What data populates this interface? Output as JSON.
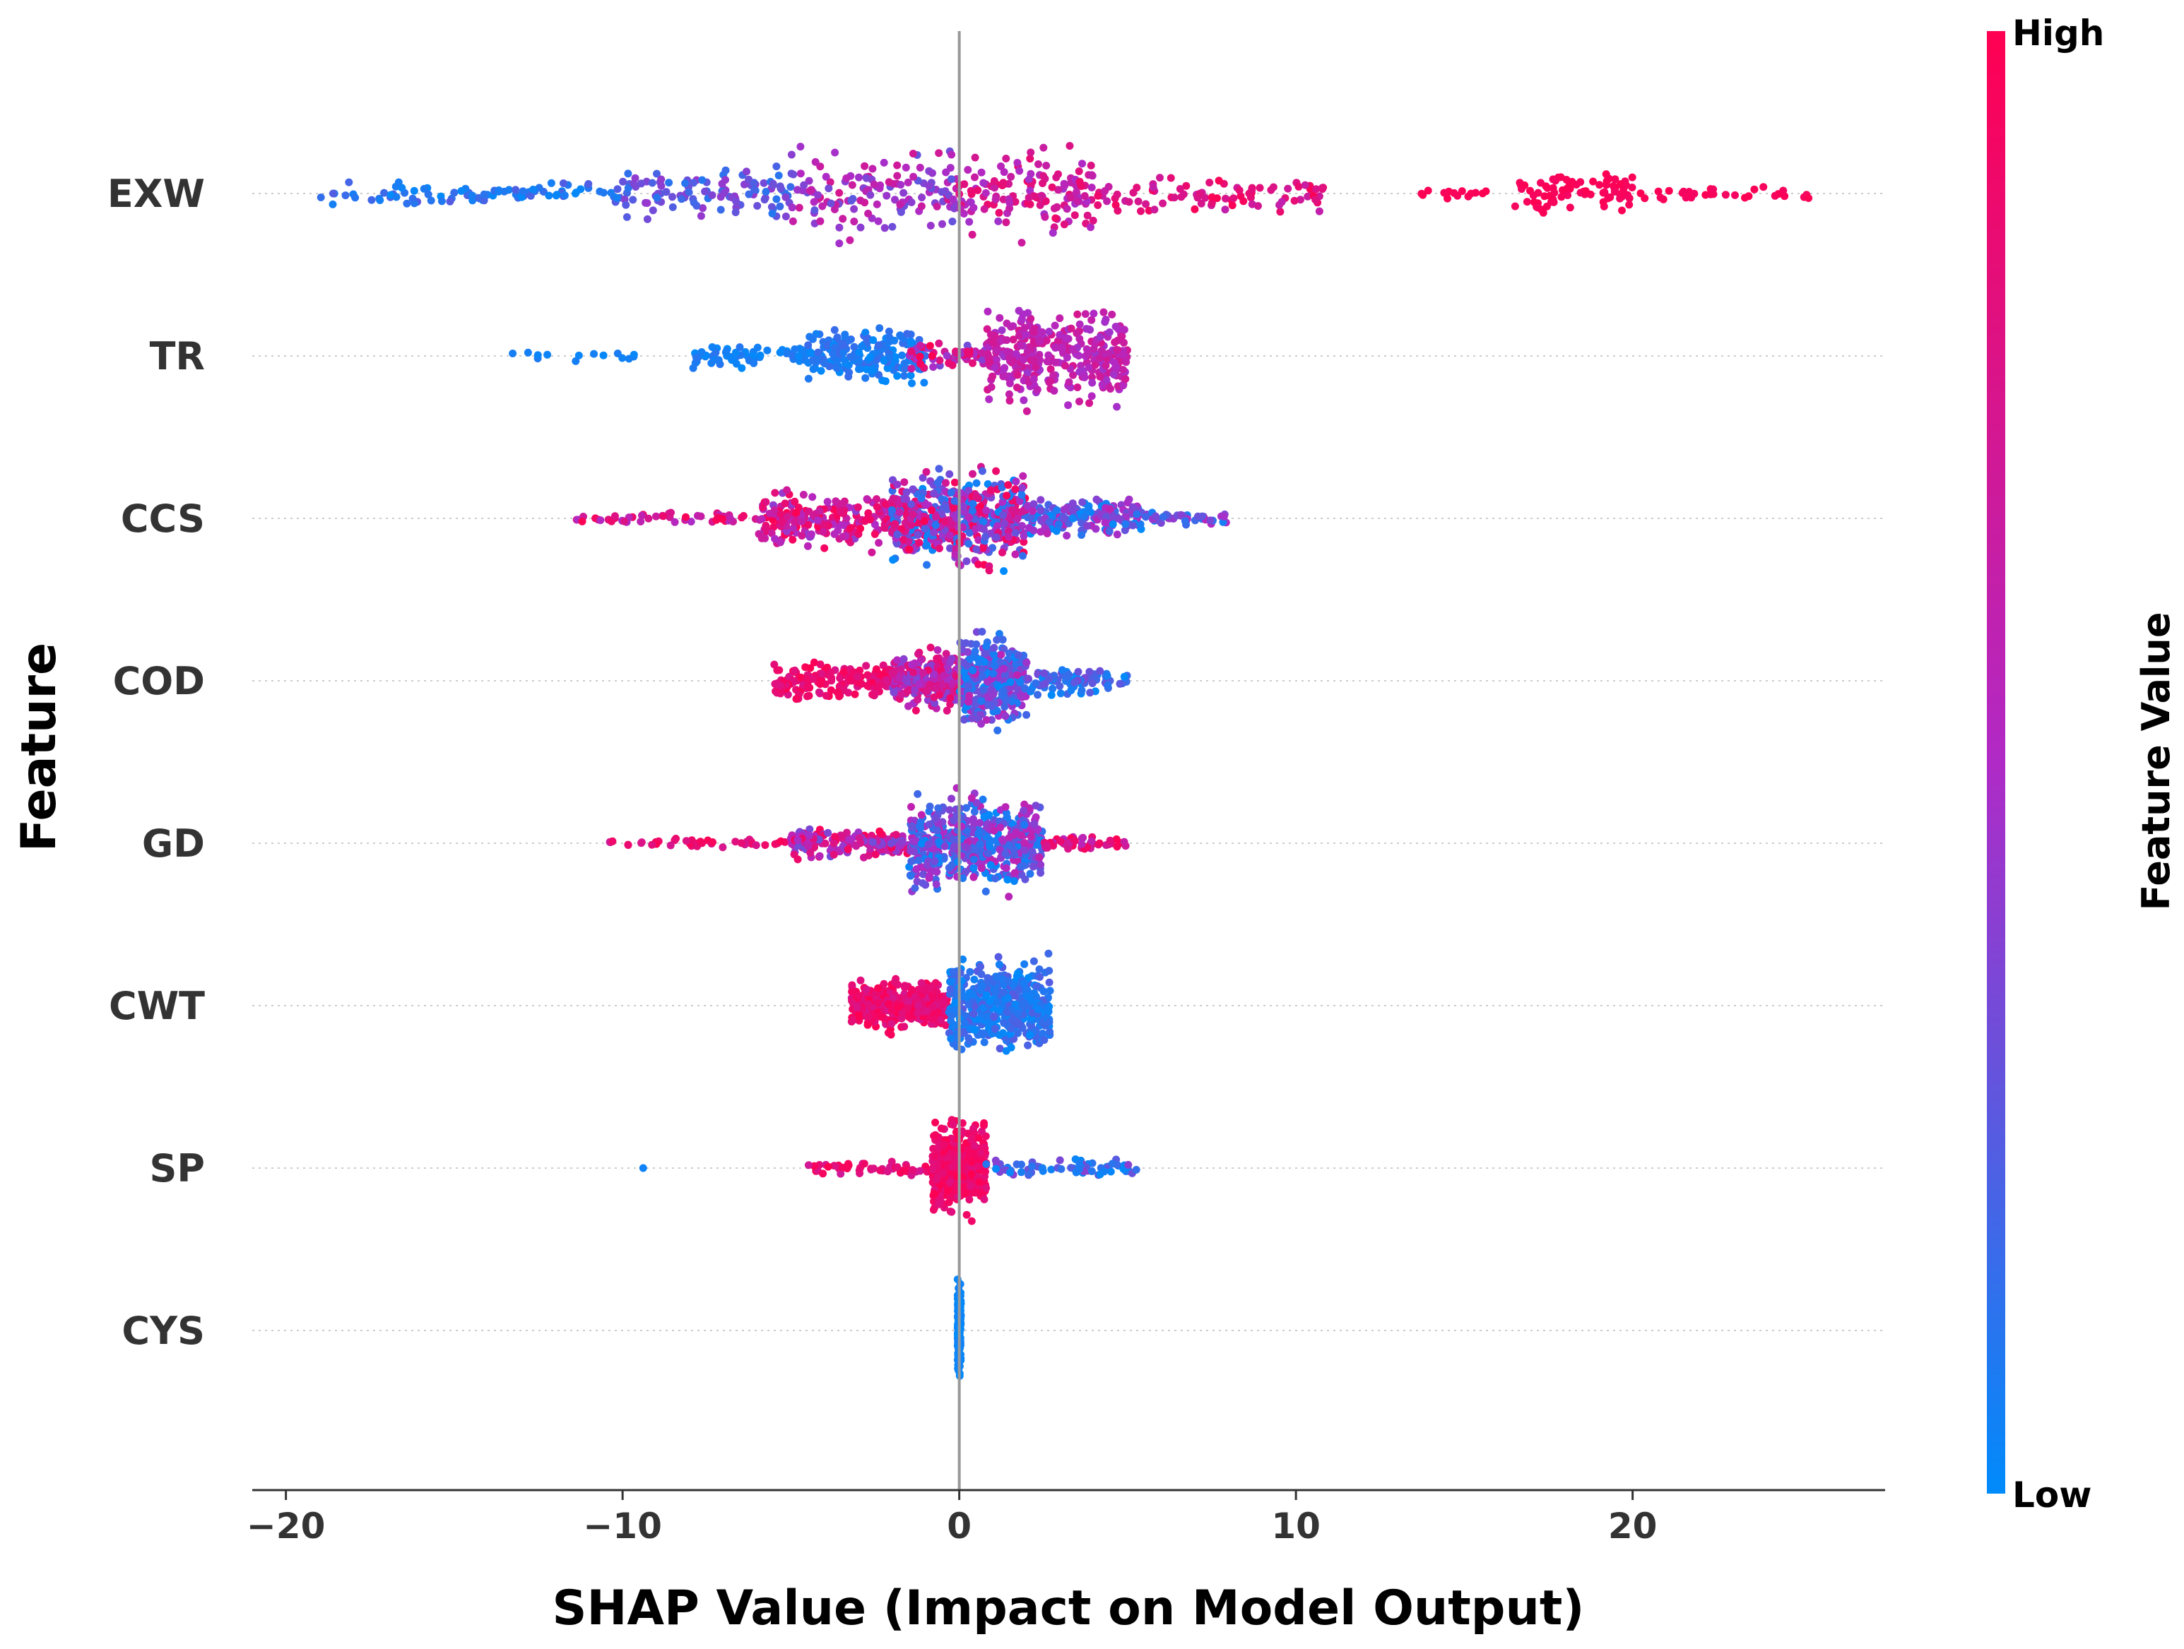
{
  "chart_data": {
    "type": "scatter",
    "subtype": "shap-beeswarm",
    "xlabel": "SHAP Value (Impact on Model Output)",
    "ylabel": "Feature",
    "xlim": [
      -21,
      27.5
    ],
    "xticks": [
      -20,
      -10,
      0,
      10,
      20
    ],
    "xtick_labels": [
      "−20",
      "−10",
      "0",
      "10",
      "20"
    ],
    "grid": false,
    "colorbar": {
      "title": "Feature Value",
      "high_label": "High",
      "low_label": "Low",
      "low_color": "#008bfb",
      "mid_color": "#b02ac6",
      "high_color": "#ff0052"
    },
    "features": [
      {
        "name": "EXW",
        "min": -19,
        "max": 25.3,
        "clusters": [
          {
            "range": [
              -19,
              -10
            ],
            "n": 90,
            "spread": 0.25,
            "color": [
              0.0,
              0.25
            ]
          },
          {
            "range": [
              -10,
              -5
            ],
            "n": 110,
            "spread": 0.6,
            "color": [
              0.1,
              0.45
            ]
          },
          {
            "range": [
              -5,
              0
            ],
            "n": 140,
            "spread": 0.95,
            "color": [
              0.25,
              0.75
            ]
          },
          {
            "range": [
              0,
              4
            ],
            "n": 140,
            "spread": 0.95,
            "color": [
              0.45,
              0.9
            ]
          },
          {
            "range": [
              4,
              11
            ],
            "n": 90,
            "spread": 0.4,
            "color": [
              0.6,
              0.98
            ]
          },
          {
            "range": [
              13.5,
              16
            ],
            "n": 14,
            "spread": 0.12,
            "color": [
              0.95,
              1.0
            ]
          },
          {
            "range": [
              16.5,
              20
            ],
            "n": 80,
            "spread": 0.45,
            "color": [
              0.93,
              1.0
            ]
          },
          {
            "range": [
              20,
              25.3
            ],
            "n": 30,
            "spread": 0.15,
            "color": [
              0.93,
              1.0
            ]
          }
        ]
      },
      {
        "name": "TR",
        "min": -13.5,
        "max": 5,
        "clusters": [
          {
            "range": [
              -13.5,
              -9.5
            ],
            "n": 14,
            "spread": 0.1,
            "color": [
              0.0,
              0.1
            ]
          },
          {
            "range": [
              -8,
              -4.5
            ],
            "n": 60,
            "spread": 0.25,
            "color": [
              0.0,
              0.12
            ]
          },
          {
            "range": [
              -4.5,
              -1
            ],
            "n": 200,
            "spread": 0.55,
            "color": [
              0.0,
              0.18
            ]
          },
          {
            "range": [
              -1.5,
              0.8
            ],
            "n": 60,
            "spread": 0.35,
            "color": [
              0.3,
              1.0
            ]
          },
          {
            "range": [
              0.8,
              5
            ],
            "n": 340,
            "spread": 1.0,
            "color": [
              0.45,
              0.75
            ]
          }
        ]
      },
      {
        "name": "CCS",
        "min": -11.5,
        "max": 8,
        "clusters": [
          {
            "range": [
              -11.5,
              -6
            ],
            "n": 50,
            "spread": 0.12,
            "color": [
              0.45,
              1.0
            ]
          },
          {
            "range": [
              -6,
              -2
            ],
            "n": 220,
            "spread": 0.6,
            "color": [
              0.4,
              1.0
            ]
          },
          {
            "range": [
              -2,
              2
            ],
            "n": 520,
            "spread": 1.0,
            "color": [
              0.0,
              1.0
            ]
          },
          {
            "range": [
              2,
              5.5
            ],
            "n": 180,
            "spread": 0.45,
            "color": [
              0.0,
              0.6
            ]
          },
          {
            "range": [
              5.5,
              8
            ],
            "n": 40,
            "spread": 0.15,
            "color": [
              0.0,
              0.55
            ]
          }
        ]
      },
      {
        "name": "COD",
        "min": -5.5,
        "max": 5,
        "clusters": [
          {
            "range": [
              -5.5,
              -2
            ],
            "n": 180,
            "spread": 0.4,
            "color": [
              0.75,
              1.0
            ]
          },
          {
            "range": [
              -2,
              0
            ],
            "n": 240,
            "spread": 0.6,
            "color": [
              0.35,
              0.9
            ]
          },
          {
            "range": [
              0,
              2
            ],
            "n": 340,
            "spread": 1.0,
            "color": [
              0.0,
              0.6
            ]
          },
          {
            "range": [
              2,
              5
            ],
            "n": 90,
            "spread": 0.3,
            "color": [
              0.0,
              0.35
            ]
          }
        ]
      },
      {
        "name": "GD",
        "min": -10.5,
        "max": 5,
        "clusters": [
          {
            "range": [
              -10.5,
              -5
            ],
            "n": 40,
            "spread": 0.1,
            "color": [
              0.7,
              1.0
            ]
          },
          {
            "range": [
              -5,
              -1.5
            ],
            "n": 180,
            "spread": 0.3,
            "color": [
              0.3,
              1.0
            ]
          },
          {
            "range": [
              -1.5,
              2.5
            ],
            "n": 520,
            "spread": 1.0,
            "color": [
              0.0,
              0.6
            ]
          },
          {
            "range": [
              2.5,
              5
            ],
            "n": 50,
            "spread": 0.15,
            "color": [
              0.55,
              1.0
            ]
          }
        ]
      },
      {
        "name": "CWT",
        "min": -3.2,
        "max": 2.7,
        "clusters": [
          {
            "range": [
              -3.2,
              -0.3
            ],
            "n": 380,
            "spread": 0.55,
            "color": [
              0.75,
              1.0
            ]
          },
          {
            "range": [
              -0.3,
              2.7
            ],
            "n": 460,
            "spread": 1.0,
            "color": [
              0.0,
              0.25
            ]
          }
        ]
      },
      {
        "name": "SP",
        "min": -9.5,
        "max": 5.3,
        "clusters": [
          {
            "range": [
              -9.5,
              -9.3
            ],
            "n": 1,
            "spread": 0.0,
            "color": [
              0.0,
              0.05
            ]
          },
          {
            "range": [
              -4.5,
              -0.8
            ],
            "n": 50,
            "spread": 0.15,
            "color": [
              0.7,
              1.0
            ]
          },
          {
            "range": [
              -0.8,
              0.8
            ],
            "n": 420,
            "spread": 1.0,
            "color": [
              0.8,
              1.0
            ]
          },
          {
            "range": [
              0.8,
              5.3
            ],
            "n": 70,
            "spread": 0.2,
            "color": [
              0.0,
              0.4
            ]
          }
        ]
      },
      {
        "name": "CYS",
        "min": 0,
        "max": 0,
        "clusters": [
          {
            "range": [
              -0.05,
              0.05
            ],
            "n": 160,
            "spread": 1.0,
            "color": [
              0.0,
              0.05
            ]
          }
        ]
      }
    ]
  }
}
